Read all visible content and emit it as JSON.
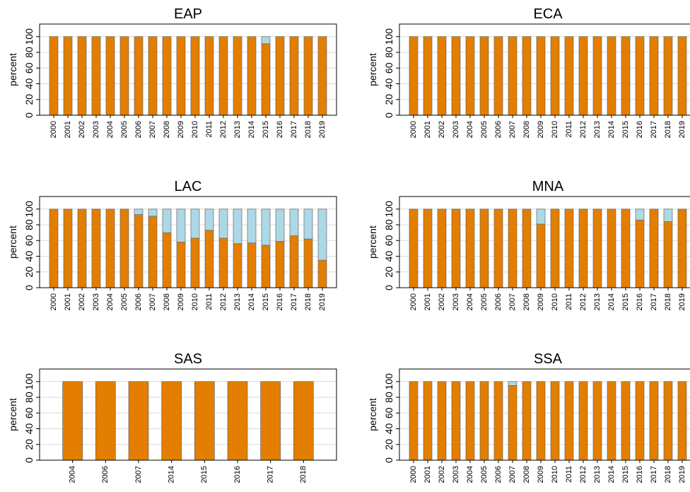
{
  "chart_data": [
    {
      "type": "bar",
      "title": "EAP",
      "y_label": "percent",
      "stacked": true,
      "grid": true,
      "categories": [
        "2000",
        "2001",
        "2002",
        "2003",
        "2004",
        "2005",
        "2006",
        "2007",
        "2008",
        "2009",
        "2010",
        "2011",
        "2012",
        "2013",
        "2014",
        "2015",
        "2016",
        "2017",
        "2018",
        "2019"
      ],
      "series": [
        {
          "color": "#e37e00",
          "values": [
            100,
            100,
            100,
            100,
            100,
            100,
            100,
            100,
            100,
            100,
            100,
            100,
            100,
            100,
            100,
            91,
            100,
            100,
            100,
            100
          ]
        },
        {
          "color": "#add8e6",
          "values": [
            0,
            0,
            0,
            0,
            0,
            0,
            0,
            0,
            0,
            0,
            0,
            0,
            0,
            0,
            0,
            9,
            0,
            0,
            0,
            0
          ]
        }
      ],
      "ylim": [
        0,
        116
      ],
      "yticks": [
        0,
        20,
        40,
        60,
        80,
        100
      ]
    },
    {
      "type": "bar",
      "title": "ECA",
      "y_label": "percent",
      "stacked": true,
      "grid": true,
      "categories": [
        "2000",
        "2001",
        "2002",
        "2003",
        "2004",
        "2005",
        "2006",
        "2007",
        "2008",
        "2009",
        "2010",
        "2011",
        "2012",
        "2013",
        "2014",
        "2015",
        "2016",
        "2017",
        "2018",
        "2019"
      ],
      "series": [
        {
          "color": "#e37e00",
          "values": [
            100,
            100,
            100,
            100,
            100,
            100,
            100,
            100,
            100,
            100,
            100,
            100,
            100,
            100,
            100,
            100,
            100,
            100,
            100,
            100
          ]
        },
        {
          "color": "#add8e6",
          "values": [
            0,
            0,
            0,
            0,
            0,
            0,
            0,
            0,
            0,
            0,
            0,
            0,
            0,
            0,
            0,
            0,
            0,
            0,
            0,
            0
          ]
        }
      ],
      "ylim": [
        0,
        116
      ],
      "yticks": [
        0,
        20,
        40,
        60,
        80,
        100
      ]
    },
    {
      "type": "bar",
      "title": "LAC",
      "y_label": "percent",
      "stacked": true,
      "grid": true,
      "categories": [
        "2000",
        "2001",
        "2002",
        "2003",
        "2004",
        "2005",
        "2006",
        "2007",
        "2008",
        "2009",
        "2010",
        "2011",
        "2012",
        "2013",
        "2014",
        "2015",
        "2016",
        "2017",
        "2018",
        "2019"
      ],
      "series": [
        {
          "color": "#e37e00",
          "values": [
            100,
            100,
            100,
            100,
            100,
            100,
            93,
            91,
            70,
            58,
            63,
            73,
            63,
            56,
            57,
            54,
            59,
            66,
            62,
            35
          ]
        },
        {
          "color": "#add8e6",
          "values": [
            0,
            0,
            0,
            0,
            0,
            0,
            7,
            9,
            30,
            42,
            37,
            27,
            37,
            44,
            43,
            46,
            41,
            34,
            38,
            65
          ]
        }
      ],
      "ylim": [
        0,
        116
      ],
      "yticks": [
        0,
        20,
        40,
        60,
        80,
        100
      ]
    },
    {
      "type": "bar",
      "title": "MNA",
      "y_label": "percent",
      "stacked": true,
      "grid": true,
      "categories": [
        "2000",
        "2001",
        "2002",
        "2003",
        "2004",
        "2005",
        "2006",
        "2007",
        "2008",
        "2009",
        "2010",
        "2011",
        "2012",
        "2013",
        "2014",
        "2015",
        "2016",
        "2017",
        "2018",
        "2019"
      ],
      "series": [
        {
          "color": "#e37e00",
          "values": [
            100,
            100,
            100,
            100,
            100,
            100,
            100,
            100,
            100,
            81,
            100,
            100,
            100,
            100,
            100,
            100,
            86,
            100,
            84,
            100
          ]
        },
        {
          "color": "#add8e6",
          "values": [
            0,
            0,
            0,
            0,
            0,
            0,
            0,
            0,
            0,
            19,
            0,
            0,
            0,
            0,
            0,
            0,
            14,
            0,
            16,
            0
          ]
        }
      ],
      "ylim": [
        0,
        116
      ],
      "yticks": [
        0,
        20,
        40,
        60,
        80,
        100
      ]
    },
    {
      "type": "bar",
      "title": "SAS",
      "y_label": "percent",
      "stacked": true,
      "grid": true,
      "categories": [
        "2004",
        "2006",
        "2007",
        "2014",
        "2015",
        "2016",
        "2017",
        "2018"
      ],
      "series": [
        {
          "color": "#e37e00",
          "values": [
            100,
            100,
            100,
            100,
            100,
            100,
            100,
            100
          ]
        },
        {
          "color": "#add8e6",
          "values": [
            0,
            0,
            0,
            0,
            0,
            0,
            0,
            0
          ]
        }
      ],
      "ylim": [
        0,
        116
      ],
      "yticks": [
        0,
        20,
        40,
        60,
        80,
        100
      ]
    },
    {
      "type": "bar",
      "title": "SSA",
      "y_label": "percent",
      "stacked": true,
      "grid": true,
      "categories": [
        "2000",
        "2001",
        "2002",
        "2003",
        "2004",
        "2005",
        "2006",
        "2007",
        "2008",
        "2009",
        "2010",
        "2011",
        "2012",
        "2013",
        "2014",
        "2015",
        "2016",
        "2017",
        "2018",
        "2019"
      ],
      "series": [
        {
          "color": "#e37e00",
          "values": [
            100,
            100,
            100,
            100,
            100,
            100,
            100,
            95,
            100,
            100,
            100,
            100,
            100,
            100,
            100,
            100,
            100,
            100,
            100,
            100
          ]
        },
        {
          "color": "#add8e6",
          "values": [
            0,
            0,
            0,
            0,
            0,
            0,
            0,
            5,
            0,
            0,
            0,
            0,
            0,
            0,
            0,
            0,
            0,
            0,
            0,
            0
          ]
        }
      ],
      "ylim": [
        0,
        116
      ],
      "yticks": [
        0,
        20,
        40,
        60,
        80,
        100
      ]
    }
  ]
}
